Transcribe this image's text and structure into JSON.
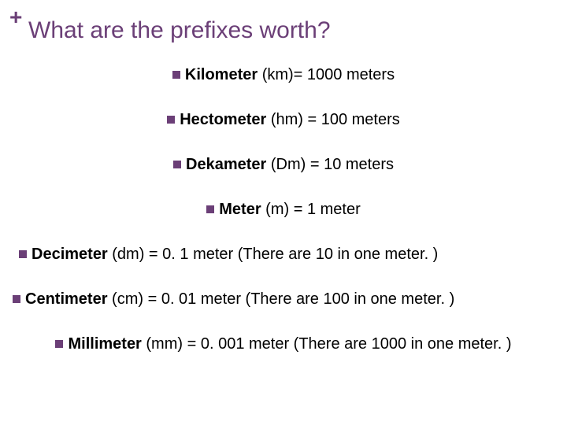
{
  "colors": {
    "accent": "#6b3f77",
    "text": "#000000",
    "background": "#ffffff"
  },
  "typography": {
    "title_fontsize": 30,
    "body_fontsize": 20,
    "font_family": "Arial"
  },
  "plus": "+",
  "title": "What are the prefixes worth?",
  "items": {
    "km": {
      "label": "Kilometer",
      "rest": " (km)= 1000 meters"
    },
    "hm": {
      "label": "Hectometer",
      "rest": " (hm) = 100 meters"
    },
    "Dm": {
      "label": "Dekameter",
      "rest": " (Dm) = 10 meters"
    },
    "m": {
      "label": "Meter",
      "rest": " (m) = 1 meter"
    },
    "dm": {
      "label": "Decimeter",
      "rest": " (dm) = 0. 1 meter (There are 10 in one meter. )"
    },
    "cm": {
      "label": "Centimeter",
      "rest": " (cm) = 0. 01 meter (There are 100 in one meter. )"
    },
    "mm": {
      "label": "Millimeter",
      "rest": " (mm) = 0. 001 meter (There are 1000 in one meter. )"
    }
  }
}
